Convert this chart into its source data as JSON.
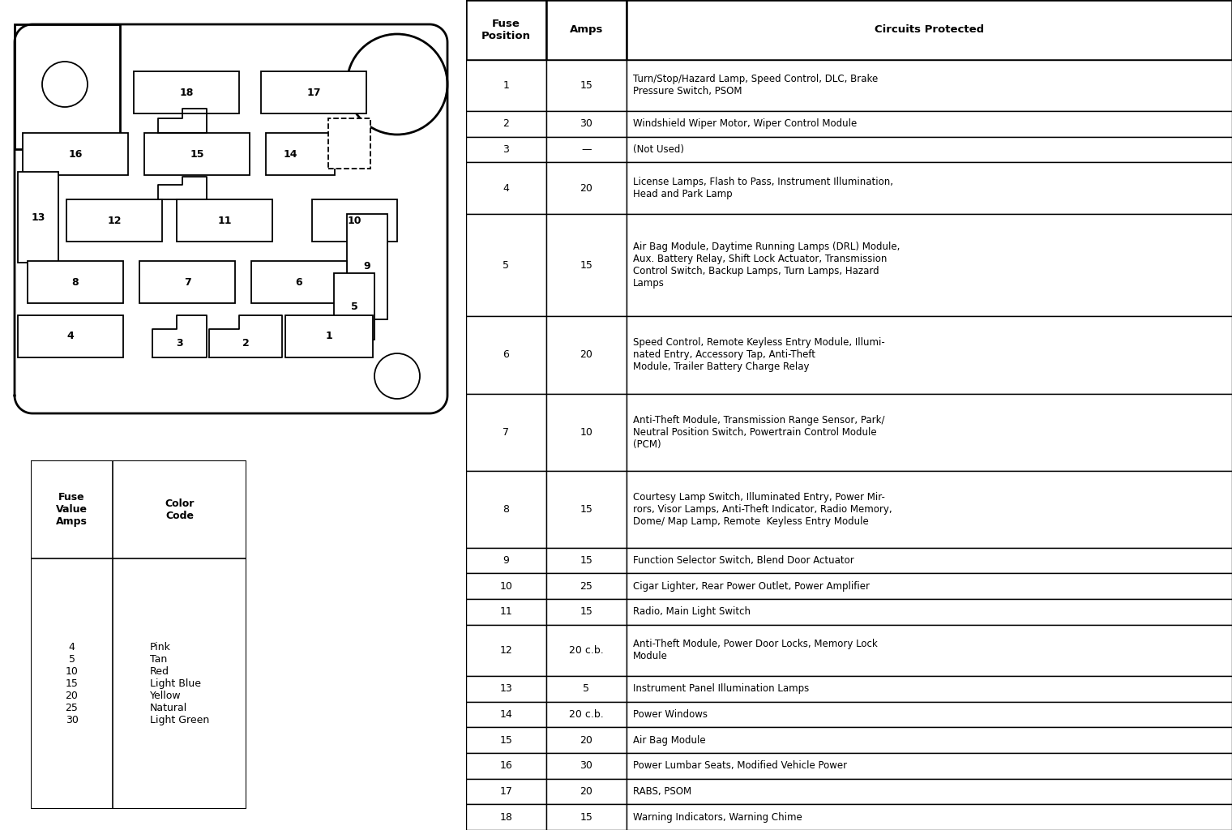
{
  "bg_color": "#ffffff",
  "fuse_table": {
    "headers": [
      "Fuse\nPosition",
      "Amps",
      "Circuits Protected"
    ],
    "rows": [
      [
        "1",
        "15",
        "Turn/Stop/Hazard Lamp, Speed Control, DLC, Brake\nPressure Switch, PSOM"
      ],
      [
        "2",
        "30",
        "Windshield Wiper Motor, Wiper Control Module"
      ],
      [
        "3",
        "—",
        "(Not Used)"
      ],
      [
        "4",
        "20",
        "License Lamps, Flash to Pass, Instrument Illumination,\nHead and Park Lamp"
      ],
      [
        "5",
        "15",
        "Air Bag Module, Daytime Running Lamps (DRL) Module,\nAux. Battery Relay, Shift Lock Actuator, Transmission\nControl Switch, Backup Lamps, Turn Lamps, Hazard\nLamps"
      ],
      [
        "6",
        "20",
        "Speed Control, Remote Keyless Entry Module, Illumi-\nnated Entry, Accessory Tap, Anti-Theft\nModule, Trailer Battery Charge Relay"
      ],
      [
        "7",
        "10",
        "Anti-Theft Module, Transmission Range Sensor, Park/\nNeutral Position Switch, Powertrain Control Module\n(PCM)"
      ],
      [
        "8",
        "15",
        "Courtesy Lamp Switch, Illuminated Entry, Power Mir-\nrors, Visor Lamps, Anti-Theft Indicator, Radio Memory,\nDome/ Map Lamp, Remote  Keyless Entry Module"
      ],
      [
        "9",
        "15",
        "Function Selector Switch, Blend Door Actuator"
      ],
      [
        "10",
        "25",
        "Cigar Lighter, Rear Power Outlet, Power Amplifier"
      ],
      [
        "11",
        "15",
        "Radio, Main Light Switch"
      ],
      [
        "12",
        "20 c.b.",
        "Anti-Theft Module, Power Door Locks, Memory Lock\nModule"
      ],
      [
        "13",
        "5",
        "Instrument Panel Illumination Lamps"
      ],
      [
        "14",
        "20 c.b.",
        "Power Windows"
      ],
      [
        "15",
        "20",
        "Air Bag Module"
      ],
      [
        "16",
        "30",
        "Power Lumbar Seats, Modified Vehicle Power"
      ],
      [
        "17",
        "20",
        "RABS, PSOM"
      ],
      [
        "18",
        "15",
        "Warning Indicators, Warning Chime"
      ]
    ]
  },
  "color_table": {
    "col1_header": "Fuse\nValue\nAmps",
    "col2_header": "Color\nCode",
    "values_col1": "4\n5\n10\n15\n20\n25\n30",
    "values_col2": "Pink\nTan\nRed\nLight Blue\nYellow\nNatural\nLight Green"
  }
}
